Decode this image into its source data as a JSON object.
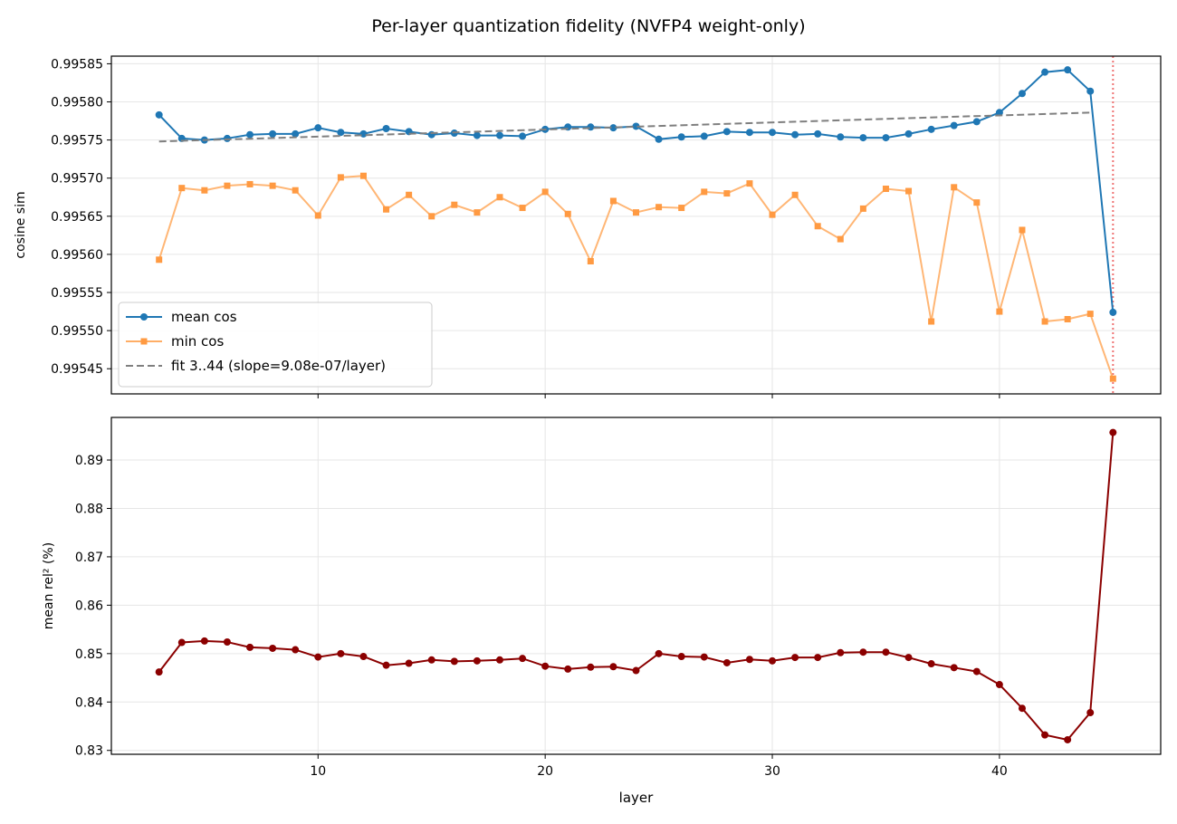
{
  "figure": {
    "title": "Per-layer quantization fidelity (NVFP4 weight-only)"
  },
  "chart_data": [
    {
      "type": "line",
      "title": "",
      "xlabel": "",
      "ylabel": "cosine sim",
      "xlim": [
        0.9,
        47.1
      ],
      "ylim": [
        0.995417,
        0.99586
      ],
      "xticks": [
        10,
        20,
        30,
        40
      ],
      "show_xtick_labels": false,
      "yticks": [
        0.99545,
        0.9955,
        0.99555,
        0.9956,
        0.99565,
        0.9957,
        0.99575,
        0.9958,
        0.99585
      ],
      "ytick_labels": [
        "0.99545",
        "0.99550",
        "0.99555",
        "0.99560",
        "0.99565",
        "0.99570",
        "0.99575",
        "0.99580",
        "0.99585"
      ],
      "grid": true,
      "legend": "lower-left",
      "vline": {
        "x": 45,
        "style": "dotted",
        "color": "#ef7373"
      },
      "x": [
        3,
        4,
        5,
        6,
        7,
        8,
        9,
        10,
        11,
        12,
        13,
        14,
        15,
        16,
        17,
        18,
        19,
        20,
        21,
        22,
        23,
        24,
        25,
        26,
        27,
        28,
        29,
        30,
        31,
        32,
        33,
        34,
        35,
        36,
        37,
        38,
        39,
        40,
        41,
        42,
        43,
        44,
        45
      ],
      "series": [
        {
          "name": "mean cos",
          "color": "#1f77b4",
          "marker": "circle",
          "style": "solid",
          "values": [
            0.995783,
            0.995752,
            0.99575,
            0.995752,
            0.995757,
            0.995758,
            0.995758,
            0.995766,
            0.99576,
            0.995758,
            0.995765,
            0.995761,
            0.995757,
            0.995759,
            0.995756,
            0.995756,
            0.995755,
            0.995764,
            0.995767,
            0.995767,
            0.995766,
            0.995768,
            0.995751,
            0.995754,
            0.995755,
            0.995761,
            0.99576,
            0.99576,
            0.995757,
            0.995758,
            0.995754,
            0.995753,
            0.995753,
            0.995758,
            0.995764,
            0.995769,
            0.995774,
            0.995786,
            0.995811,
            0.995839,
            0.995842,
            0.995814,
            0.995524
          ]
        },
        {
          "name": "min cos",
          "color": "#ffae66",
          "marker": "square",
          "style": "solid",
          "values": [
            0.995593,
            0.995687,
            0.995684,
            0.99569,
            0.995692,
            0.99569,
            0.995684,
            0.995651,
            0.995701,
            0.995703,
            0.995659,
            0.995678,
            0.99565,
            0.995665,
            0.995655,
            0.995675,
            0.995661,
            0.995682,
            0.995653,
            0.995591,
            0.99567,
            0.995655,
            0.995662,
            0.995661,
            0.995682,
            0.99568,
            0.995693,
            0.995652,
            0.995678,
            0.995637,
            0.99562,
            0.99566,
            0.995686,
            0.995683,
            0.995512,
            0.995688,
            0.995668,
            0.995525,
            0.995632,
            0.995512,
            0.995515,
            0.995522,
            0.995437
          ]
        },
        {
          "name": "fit 3..44 (slope=9.08e-07/layer)",
          "color": "#7f7f7f",
          "marker": "none",
          "style": "dashed",
          "x": [
            3,
            44
          ],
          "values": [
            0.995748,
            0.995786
          ]
        }
      ]
    },
    {
      "type": "line",
      "title": "",
      "xlabel": "layer",
      "ylabel": "mean rel² (%)",
      "xlim": [
        0.9,
        47.1
      ],
      "ylim": [
        0.8292,
        0.8988
      ],
      "xticks": [
        10,
        20,
        30,
        40
      ],
      "xtick_labels": [
        "10",
        "20",
        "30",
        "40"
      ],
      "yticks": [
        0.83,
        0.84,
        0.85,
        0.86,
        0.87,
        0.88,
        0.89
      ],
      "ytick_labels": [
        "0.83",
        "0.84",
        "0.85",
        "0.86",
        "0.87",
        "0.88",
        "0.89"
      ],
      "grid": true,
      "x": [
        3,
        4,
        5,
        6,
        7,
        8,
        9,
        10,
        11,
        12,
        13,
        14,
        15,
        16,
        17,
        18,
        19,
        20,
        21,
        22,
        23,
        24,
        25,
        26,
        27,
        28,
        29,
        30,
        31,
        32,
        33,
        34,
        35,
        36,
        37,
        38,
        39,
        40,
        41,
        42,
        43,
        44,
        45
      ],
      "series": [
        {
          "color": "#8b0000",
          "marker": "circle",
          "style": "solid",
          "values": [
            0.8462,
            0.8523,
            0.8526,
            0.8524,
            0.8513,
            0.8511,
            0.8508,
            0.8493,
            0.85,
            0.8494,
            0.8476,
            0.848,
            0.8487,
            0.8484,
            0.8485,
            0.8487,
            0.849,
            0.8474,
            0.8468,
            0.8472,
            0.8473,
            0.8465,
            0.85,
            0.8494,
            0.8493,
            0.8481,
            0.8488,
            0.8485,
            0.8492,
            0.8492,
            0.8502,
            0.8503,
            0.8503,
            0.8492,
            0.8479,
            0.8471,
            0.8463,
            0.8436,
            0.8387,
            0.8332,
            0.8322,
            0.8378,
            0.8957
          ]
        }
      ]
    }
  ]
}
